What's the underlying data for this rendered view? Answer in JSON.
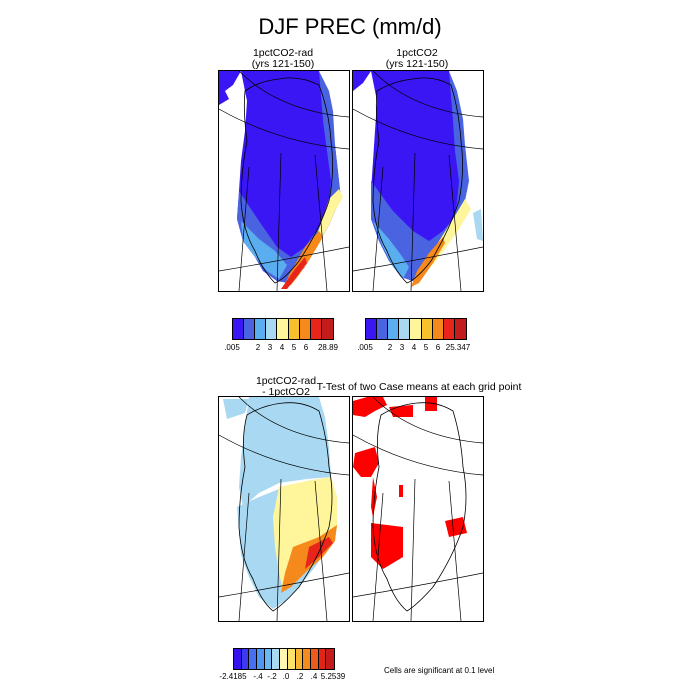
{
  "title": "DJF PREC (mm/d)",
  "panels": [
    {
      "title_line1": "1pctCO2-rad",
      "title_line2": "(yrs 121-150)"
    },
    {
      "title_line1": "1pctCO2",
      "title_line2": "(yrs 121-150)"
    },
    {
      "title_line1": "1pctCO2-rad",
      "title_line2": "- 1pctCO2"
    },
    {
      "title_line1": "T-Test of two Case means at each grid point",
      "title_line2": ""
    }
  ],
  "colorbars": [
    {
      "colors": [
        "#3a16f5",
        "#4a63e0",
        "#5aaef0",
        "#a9d8f2",
        "#fff59a",
        "#f7c12d",
        "#f5891c",
        "#e8251b",
        "#c21c1c"
      ],
      "labels": [
        ".005",
        "2",
        "3",
        "4",
        "5",
        "6",
        "28.89"
      ]
    },
    {
      "colors": [
        "#3a16f5",
        "#4a63e0",
        "#5aaef0",
        "#a9d8f2",
        "#fff59a",
        "#f7c12d",
        "#f5891c",
        "#e8251b",
        "#c21c1c"
      ],
      "labels": [
        ".005",
        "2",
        "3",
        "4",
        "5",
        "6",
        "25.347"
      ]
    },
    {
      "colors": [
        "#3612ee",
        "#3f38f2",
        "#4770f0",
        "#4f97f2",
        "#6cb8f3",
        "#a9d8f2",
        "#fff7b0",
        "#fde36a",
        "#f9b531",
        "#f28b20",
        "#ec5a1c",
        "#e02518",
        "#c41b1b"
      ],
      "labels": [
        "-2.4185",
        "-.4",
        "-.2",
        ".0",
        ".2",
        ".4",
        "5.2539"
      ]
    }
  ],
  "significance_note": "Cells are significant at 0.1 level",
  "map_colors": {
    "deep": "#3a16f5",
    "blue": "#4a63e0",
    "sky": "#5aaef0",
    "light": "#a9d8f2",
    "yellow": "#fff59a",
    "orange": "#f5891c",
    "red": "#e8251b",
    "sig": "#ff0000"
  }
}
